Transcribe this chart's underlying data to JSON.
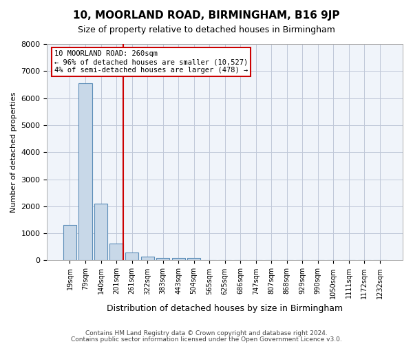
{
  "title": "10, MOORLAND ROAD, BIRMINGHAM, B16 9JP",
  "subtitle": "Size of property relative to detached houses in Birmingham",
  "xlabel": "Distribution of detached houses by size in Birmingham",
  "ylabel": "Number of detached properties",
  "footer_line1": "Contains HM Land Registry data © Crown copyright and database right 2024.",
  "footer_line2": "Contains public sector information licensed under the Open Government Licence v3.0.",
  "categories": [
    "19sqm",
    "79sqm",
    "140sqm",
    "201sqm",
    "261sqm",
    "322sqm",
    "383sqm",
    "443sqm",
    "504sqm",
    "565sqm",
    "625sqm",
    "686sqm",
    "747sqm",
    "807sqm",
    "868sqm",
    "929sqm",
    "990sqm",
    "1050sqm",
    "1111sqm",
    "1172sqm",
    "1232sqm"
  ],
  "values": [
    1300,
    6550,
    2090,
    620,
    290,
    150,
    100,
    80,
    100,
    0,
    0,
    0,
    0,
    0,
    0,
    0,
    0,
    0,
    0,
    0,
    0
  ],
  "bar_color": "#c8d8e8",
  "bar_edge_color": "#5b8db8",
  "annotation_text_line1": "10 MOORLAND ROAD: 260sqm",
  "annotation_text_line2": "← 96% of detached houses are smaller (10,527)",
  "annotation_text_line3": "4% of semi-detached houses are larger (478) →",
  "annotation_box_color": "#cc0000",
  "vline_color": "#cc0000",
  "vline_x_index": 3.925,
  "ylim": [
    0,
    8000
  ],
  "yticks": [
    0,
    1000,
    2000,
    3000,
    4000,
    5000,
    6000,
    7000,
    8000
  ],
  "grid_color": "#c0c8d8",
  "background_color": "#f0f4fa"
}
